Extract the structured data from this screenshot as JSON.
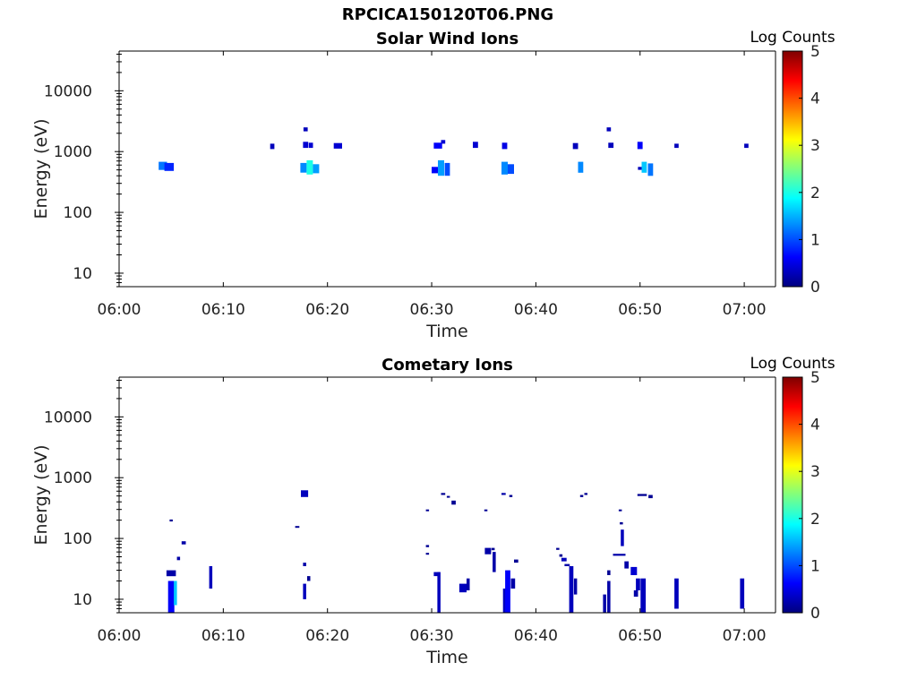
{
  "figure_title": "RPCICA150120T06.PNG",
  "colors": {
    "scale": [
      "#00007f",
      "#0000ff",
      "#007fff",
      "#00ffff",
      "#7fff7f",
      "#ffff00",
      "#ff7f00",
      "#ff0000",
      "#7f0000"
    ]
  },
  "chart_data": [
    {
      "type": "heatmap",
      "title": "Solar Wind Ions",
      "xlabel": "Time",
      "ylabel": "Energy (eV)",
      "xlim": [
        "06:00",
        "07:03"
      ],
      "ylim": [
        6,
        45000
      ],
      "yscale": "log",
      "xticks": [
        "06:00",
        "06:10",
        "06:20",
        "06:30",
        "06:40",
        "06:50",
        "07:00"
      ],
      "yticks": [
        {
          "value": 10,
          "label": "10"
        },
        {
          "value": 100,
          "label": "100"
        },
        {
          "value": 1000,
          "label": "1000"
        },
        {
          "value": 10000,
          "label": "10000"
        }
      ],
      "colorbar": {
        "label": "Log Counts",
        "range": [
          0,
          5
        ],
        "ticks": [
          "0",
          "1",
          "2",
          "3",
          "4",
          "5"
        ]
      },
      "cells": [
        [
          "06:04.2",
          0.8,
          500,
          680,
          1.2
        ],
        [
          "06:04.8",
          0.9,
          480,
          650,
          0.8
        ],
        [
          "06:14.7",
          0.4,
          1100,
          1350,
          0.3
        ],
        [
          "06:17.9",
          0.4,
          2150,
          2500,
          0.3
        ],
        [
          "06:17.9",
          0.5,
          1150,
          1450,
          0.4
        ],
        [
          "06:18.4",
          0.4,
          1150,
          1400,
          0.4
        ],
        [
          "06:17.7",
          0.6,
          450,
          650,
          1.3
        ],
        [
          "06:18.3",
          0.6,
          420,
          720,
          2.0
        ],
        [
          "06:18.9",
          0.6,
          440,
          620,
          1.4
        ],
        [
          "06:21.0",
          0.8,
          1120,
          1380,
          0.4
        ],
        [
          "06:30.6",
          0.8,
          1120,
          1400,
          0.6
        ],
        [
          "06:31.1",
          0.4,
          1350,
          1550,
          0.4
        ],
        [
          "06:30.3",
          0.6,
          440,
          560,
          0.6
        ],
        [
          "06:30.9",
          0.6,
          400,
          720,
          1.4
        ],
        [
          "06:31.5",
          0.5,
          400,
          650,
          1.0
        ],
        [
          "06:34.2",
          0.5,
          1150,
          1450,
          0.4
        ],
        [
          "06:37.0",
          0.5,
          1100,
          1400,
          0.5
        ],
        [
          "06:37.0",
          0.6,
          420,
          680,
          1.3
        ],
        [
          "06:37.6",
          0.6,
          430,
          620,
          1.0
        ],
        [
          "06:43.8",
          0.5,
          1100,
          1380,
          0.3
        ],
        [
          "06:44.3",
          0.5,
          450,
          680,
          1.3
        ],
        [
          "06:47.0",
          0.4,
          2150,
          2500,
          0.3
        ],
        [
          "06:47.2",
          0.5,
          1150,
          1400,
          0.3
        ],
        [
          "06:50.0",
          0.5,
          1100,
          1450,
          0.6
        ],
        [
          "06:50.0",
          0.4,
          500,
          560,
          0.3
        ],
        [
          "06:50.4",
          0.5,
          450,
          680,
          1.6
        ],
        [
          "06:51.0",
          0.5,
          400,
          640,
          1.2
        ],
        [
          "06:53.5",
          0.4,
          1150,
          1350,
          0.3
        ],
        [
          "07:00.2",
          0.4,
          1150,
          1350,
          0.3
        ]
      ]
    },
    {
      "type": "heatmap",
      "title": "Cometary Ions",
      "xlabel": "Time",
      "ylabel": "Energy (eV)",
      "xlim": [
        "06:00",
        "07:03"
      ],
      "ylim": [
        6,
        45000
      ],
      "yscale": "log",
      "xticks": [
        "06:00",
        "06:10",
        "06:20",
        "06:30",
        "06:40",
        "06:50",
        "07:00"
      ],
      "yticks": [
        {
          "value": 10,
          "label": "10"
        },
        {
          "value": 100,
          "label": "100"
        },
        {
          "value": 1000,
          "label": "1000"
        },
        {
          "value": 10000,
          "label": "10000"
        }
      ],
      "colorbar": {
        "label": "Log Counts",
        "range": [
          0,
          5
        ],
        "ticks": [
          "0",
          "1",
          "2",
          "3",
          "4",
          "5"
        ]
      },
      "cells": [
        [
          "06:05.0",
          0.3,
          190,
          205,
          0.1
        ],
        [
          "06:05.0",
          0.6,
          6,
          20,
          0.6
        ],
        [
          "06:05.4",
          0.3,
          8,
          20,
          1.6
        ],
        [
          "06:05.0",
          0.9,
          24,
          30,
          0.2
        ],
        [
          "06:05.7",
          0.3,
          44,
          50,
          0.2
        ],
        [
          "06:06.2",
          0.4,
          80,
          90,
          0.2
        ],
        [
          "06:08.8",
          0.3,
          15,
          35,
          0.3
        ],
        [
          "06:17.1",
          0.4,
          150,
          160,
          0.1
        ],
        [
          "06:17.8",
          0.7,
          480,
          620,
          0.3
        ],
        [
          "06:17.8",
          0.3,
          35,
          40,
          0.2
        ],
        [
          "06:17.8",
          0.3,
          10,
          18,
          0.3
        ],
        [
          "06:18.2",
          0.3,
          20,
          24,
          0.1
        ],
        [
          "06:29.6",
          0.3,
          280,
          300,
          0.1
        ],
        [
          "06:29.6",
          0.3,
          72,
          78,
          0.1
        ],
        [
          "06:29.6",
          0.3,
          54,
          58,
          0.1
        ],
        [
          "06:30.5",
          0.6,
          24,
          28,
          0.3
        ],
        [
          "06:30.7",
          0.3,
          6,
          28,
          0.3
        ],
        [
          "06:31.1",
          0.4,
          520,
          560,
          0.1
        ],
        [
          "06:31.6",
          0.3,
          470,
          500,
          0.1
        ],
        [
          "06:32.1",
          0.4,
          360,
          420,
          0.1
        ],
        [
          "06:33.0",
          0.7,
          13,
          18,
          0.3
        ],
        [
          "06:33.5",
          0.3,
          14,
          22,
          0.2
        ],
        [
          "06:35.2",
          0.3,
          280,
          300,
          0.1
        ],
        [
          "06:35.4",
          0.6,
          55,
          70,
          0.2
        ],
        [
          "06:35.9",
          0.3,
          64,
          70,
          0.1
        ],
        [
          "06:36.0",
          0.3,
          28,
          60,
          0.2
        ],
        [
          "06:36.9",
          0.4,
          520,
          560,
          0.2
        ],
        [
          "06:37.6",
          0.3,
          480,
          520,
          0.1
        ],
        [
          "06:37.0",
          0.3,
          6,
          15,
          0.3
        ],
        [
          "06:37.3",
          0.5,
          6,
          30,
          0.6
        ],
        [
          "06:37.8",
          0.4,
          15,
          22,
          0.2
        ],
        [
          "06:38.1",
          0.4,
          40,
          45,
          0.1
        ],
        [
          "06:42.1",
          0.3,
          65,
          70,
          0.1
        ],
        [
          "06:42.4",
          0.3,
          50,
          55,
          0.1
        ],
        [
          "06:42.7",
          0.5,
          42,
          48,
          0.3
        ],
        [
          "06:43.0",
          0.5,
          35,
          38,
          0.2
        ],
        [
          "06:43.4",
          0.4,
          6,
          35,
          0.3
        ],
        [
          "06:43.8",
          0.3,
          12,
          22,
          0.2
        ],
        [
          "06:44.4",
          0.3,
          480,
          520,
          0.1
        ],
        [
          "06:44.8",
          0.3,
          520,
          560,
          0.1
        ],
        [
          "06:46.6",
          0.3,
          6,
          12,
          0.2
        ],
        [
          "06:47.0",
          0.3,
          6,
          20,
          0.2
        ],
        [
          "06:47.0",
          0.3,
          25,
          30,
          0.1
        ],
        [
          "06:48.1",
          0.3,
          280,
          300,
          0.1
        ],
        [
          "06:48.2",
          0.3,
          170,
          185,
          0.1
        ],
        [
          "06:48.3",
          0.3,
          75,
          140,
          0.3
        ],
        [
          "06:48.0",
          1.2,
          52,
          56,
          0.2
        ],
        [
          "06:48.7",
          0.4,
          32,
          42,
          0.2
        ],
        [
          "06:49.4",
          0.6,
          25,
          34,
          0.4
        ],
        [
          "06:49.6",
          0.4,
          11,
          14,
          0.2
        ],
        [
          "06:49.8",
          0.4,
          14,
          22,
          0.3
        ],
        [
          "06:50.3",
          0.5,
          6,
          22,
          0.3
        ],
        [
          "06:50.2",
          0.9,
          500,
          540,
          0.1
        ],
        [
          "06:51.0",
          0.4,
          460,
          520,
          0.1
        ],
        [
          "06:53.5",
          0.4,
          7,
          22,
          0.3
        ],
        [
          "06:59.8",
          0.4,
          7,
          22,
          0.3
        ]
      ]
    }
  ]
}
